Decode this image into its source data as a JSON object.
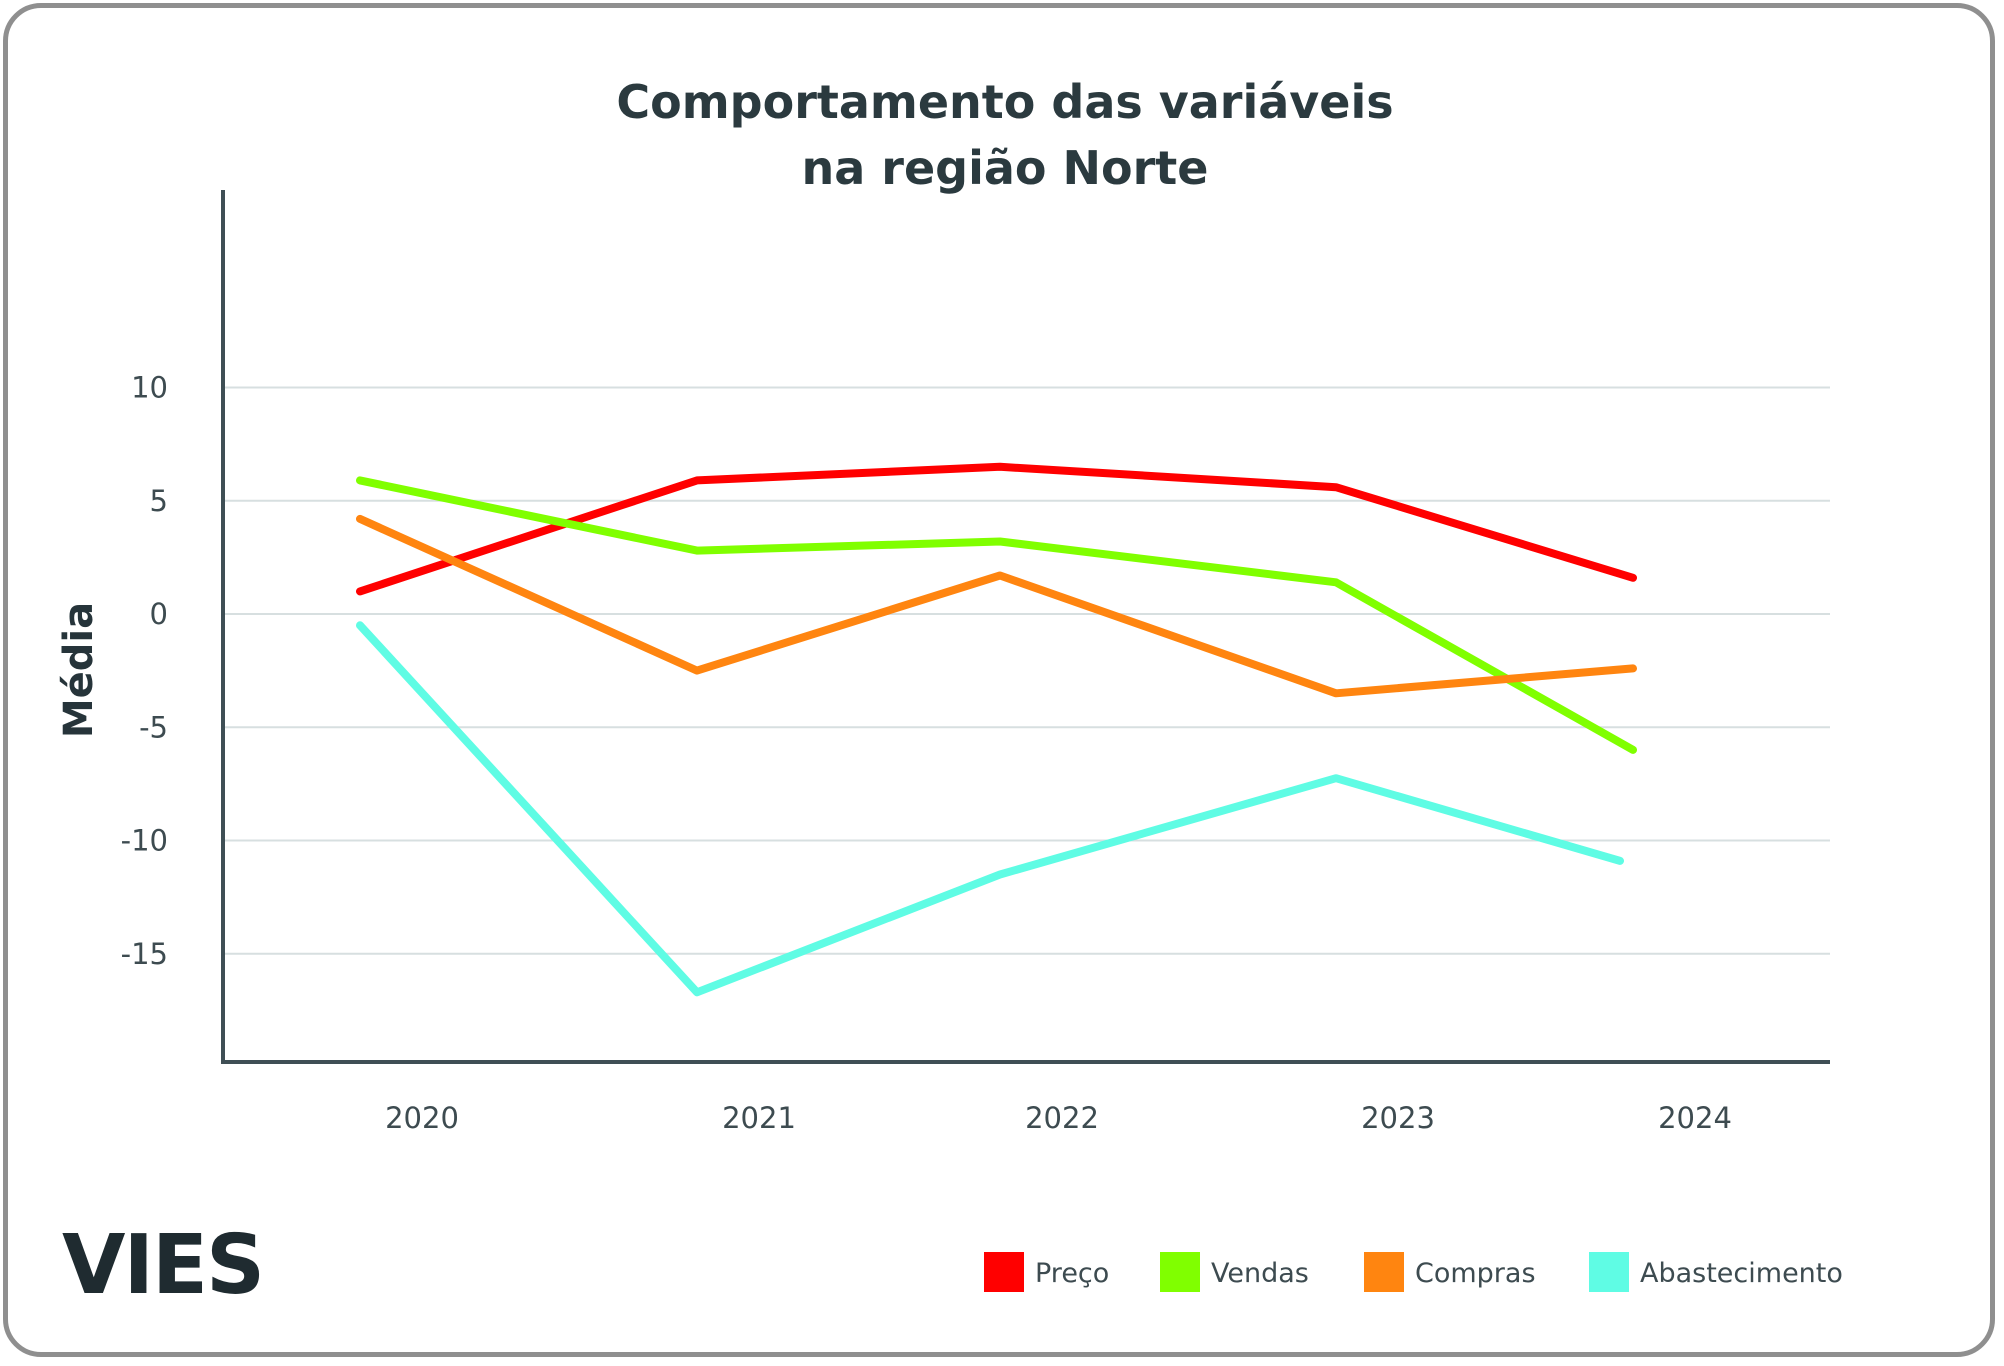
{
  "chart_data": {
    "type": "line",
    "title": [
      "Comportamento das variáveis",
      "na região Norte"
    ],
    "xlabel": "",
    "ylabel": "Média",
    "categories": [
      "2020",
      "2021",
      "2022",
      "2023",
      "2024"
    ],
    "ylim": [
      -19,
      12
    ],
    "yticks": [
      10,
      5,
      0,
      -5,
      -10,
      -15
    ],
    "ytick_labels": [
      "10",
      "5",
      "0",
      "-5",
      "-10",
      "-15"
    ],
    "grid": true,
    "legend_position": "bottom-right",
    "series": [
      {
        "name": "Preço",
        "color": "#ff0000",
        "values": [
          1.0,
          5.9,
          6.5,
          5.6,
          1.6
        ]
      },
      {
        "name": "Vendas",
        "color": "#80ff00",
        "values": [
          5.9,
          2.8,
          3.2,
          1.4,
          -6.0
        ]
      },
      {
        "name": "Compras",
        "color": "#ff8510",
        "values": [
          4.2,
          -2.5,
          1.7,
          -3.5,
          -2.4
        ]
      },
      {
        "name": "Abastecimento",
        "color": "#5ffce4",
        "values": [
          -0.5,
          -16.7,
          -11.5,
          -7.25,
          -10.9
        ]
      }
    ]
  },
  "branding": {
    "logo_text": "VIES"
  }
}
